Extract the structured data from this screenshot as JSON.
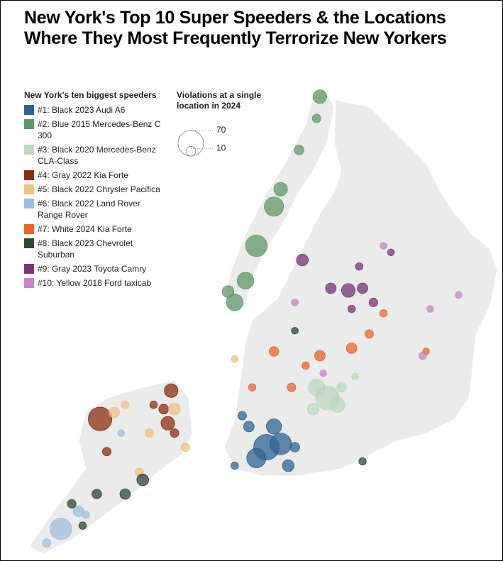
{
  "chart_data": {
    "type": "bubble-map",
    "title": "New York's Top 10 Super Speeders & the Locations Where They Most Frequently Terrorize New Yorkers",
    "legend_title": "New York's ten biggest speeders",
    "size_legend": {
      "title": "Violations at a single location in 2024",
      "values": [
        70,
        10
      ]
    },
    "series": [
      {
        "name": "#1: Black 2023 Audi A6",
        "color": "#2f6394",
        "lon": [
          -73.976,
          -73.988,
          -73.959,
          -73.967,
          -73.95,
          -73.997,
          -74.005,
          -73.942,
          -74.014
        ],
        "lat": [
          40.588,
          40.578,
          40.591,
          40.607,
          40.571,
          40.607,
          40.617,
          40.588,
          40.571
        ],
        "values": [
          70,
          40,
          50,
          25,
          15,
          12,
          8,
          10,
          6
        ]
      },
      {
        "name": "#2: Blue 2015 Mercedes-Benz C 300",
        "color": "#5e9a68",
        "lon": [
          -73.912,
          -73.967,
          -73.988,
          -74.001,
          -74.014,
          -73.959,
          -73.937,
          -73.916,
          -74.022
        ],
        "lat": [
          40.91,
          40.809,
          40.773,
          40.741,
          40.721,
          40.825,
          40.861,
          40.89,
          40.731
        ],
        "values": [
          20,
          40,
          50,
          30,
          30,
          20,
          10,
          8,
          15
        ]
      },
      {
        "name": "#3: Black 2020 Mercedes-Benz CLA-Class",
        "color": "#bcd8bf",
        "lon": [
          -73.903,
          -73.916,
          -73.891,
          -73.92,
          -73.886,
          -73.87
        ],
        "lat": [
          40.633,
          40.643,
          40.627,
          40.623,
          40.643,
          40.653
        ],
        "values": [
          60,
          30,
          25,
          15,
          10,
          5
        ]
      },
      {
        "name": "#4: Gray 2022 Kia Forte",
        "color": "#8b2f12",
        "lon": [
          -74.175,
          -74.09,
          -74.094,
          -74.099,
          -74.167,
          -74.086,
          -74.111
        ],
        "lat": [
          40.614,
          40.64,
          40.61,
          40.623,
          40.584,
          40.601,
          40.627
        ],
        "values": [
          60,
          20,
          20,
          10,
          8,
          8,
          6
        ]
      },
      {
        "name": "#5: Black 2022 Chrysler Pacifica",
        "color": "#efc27e",
        "lon": [
          -74.086,
          -74.158,
          -74.073,
          -74.116,
          -74.128,
          -74.145,
          -74.014
        ],
        "lat": [
          40.623,
          40.62,
          40.588,
          40.601,
          40.565,
          40.627,
          40.669
        ],
        "values": [
          15,
          12,
          8,
          8,
          8,
          6,
          5
        ]
      },
      {
        "name": "#6: Black 2022 Land Rover Range Rover",
        "color": "#9dbfde",
        "lon": [
          -74.222,
          -74.201,
          -74.239,
          -74.192,
          -74.15
        ],
        "lat": [
          40.513,
          40.529,
          40.5,
          40.526,
          40.601
        ],
        "values": [
          50,
          12,
          8,
          6,
          5
        ]
      },
      {
        "name": "#7: White 2024 Kia Forte",
        "color": "#e9652b",
        "lon": [
          -73.967,
          -73.912,
          -73.874,
          -73.853,
          -73.946,
          -73.993,
          -73.785,
          -73.836,
          -73.929
        ],
        "lat": [
          40.676,
          40.672,
          40.679,
          40.692,
          40.643,
          40.643,
          40.676,
          40.711,
          40.663
        ],
        "values": [
          10,
          12,
          12,
          8,
          8,
          6,
          5,
          6,
          6
        ]
      },
      {
        "name": "#8: Black 2023 Chevrolet Suburban",
        "color": "#2e4833",
        "lon": [
          -74.124,
          -74.145,
          -74.179,
          -74.209,
          -74.196,
          -73.861,
          -73.942
        ],
        "lat": [
          40.558,
          40.545,
          40.545,
          40.536,
          40.516,
          40.575,
          40.695
        ],
        "values": [
          15,
          12,
          10,
          8,
          6,
          6,
          5
        ]
      },
      {
        "name": "#9: Gray 2023 Toyota Camry",
        "color": "#7a3475",
        "lon": [
          -73.878,
          -73.861,
          -73.899,
          -73.848,
          -73.933,
          -73.874,
          -73.865,
          -73.827
        ],
        "lat": [
          40.732,
          40.734,
          40.734,
          40.721,
          40.76,
          40.715,
          40.754,
          40.767
        ],
        "values": [
          20,
          12,
          12,
          8,
          15,
          6,
          6,
          5
        ]
      },
      {
        "name": "#10: Yellow 2018 Ford taxicab",
        "color": "#c785c1",
        "lon": [
          -73.789,
          -73.836,
          -73.746,
          -73.908,
          -73.942,
          -73.78
        ],
        "lat": [
          40.672,
          40.773,
          40.728,
          40.656,
          40.721,
          40.715
        ],
        "values": [
          6,
          5,
          5,
          5,
          5,
          5
        ]
      }
    ]
  }
}
